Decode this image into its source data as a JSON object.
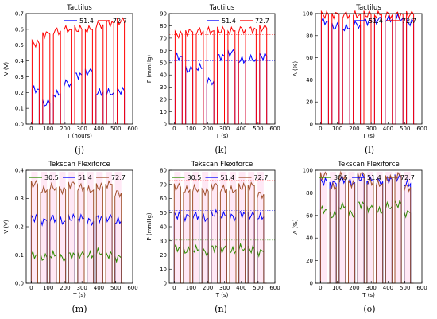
{
  "chart_data": [
    {
      "type": "line",
      "letter": "(j)",
      "title": "Tactilus",
      "xlabel": "T (hours)",
      "ylabel": "V (V)",
      "xlim": [
        -30,
        600
      ],
      "ylim": [
        0,
        0.7
      ],
      "xticks": [
        "0",
        "100",
        "200",
        "300",
        "400",
        "500",
        "600"
      ],
      "yticks": [
        "0.0",
        "0.1",
        "0.2",
        "0.3",
        "0.4",
        "0.5",
        "0.6",
        "0.7"
      ],
      "legend": "top-right",
      "grid": false,
      "series": [
        {
          "name": "51.4",
          "color": "#0000ff",
          "levels": [
            0.22,
            0.13,
            0.19,
            0.26,
            0.31,
            0.33,
            0.2,
            0.2,
            0.21
          ]
        },
        {
          "name": "72.7",
          "color": "#ff0000",
          "levels": [
            0.51,
            0.57,
            0.59,
            0.6,
            0.6,
            0.6,
            0.63,
            0.64,
            0.65
          ]
        }
      ]
    },
    {
      "type": "line",
      "letter": "(k)",
      "title": "Tactilus",
      "xlabel": "T (s)",
      "ylabel": "P (mmHg)",
      "xlim": [
        -30,
        600
      ],
      "ylim": [
        0,
        90
      ],
      "xticks": [
        "0",
        "100",
        "200",
        "300",
        "400",
        "500",
        "600"
      ],
      "yticks": [
        "0",
        "10",
        "20",
        "30",
        "40",
        "50",
        "60",
        "70",
        "80",
        "90"
      ],
      "legend": "top-right",
      "grid": false,
      "series": [
        {
          "name": "51.4",
          "color": "#0000ff",
          "levels": [
            55,
            44,
            46,
            35,
            55,
            58,
            52,
            53,
            55
          ]
        },
        {
          "name": "72.7",
          "color": "#ff0000",
          "levels": [
            73,
            75,
            76,
            76,
            76,
            76,
            77,
            77,
            78
          ]
        }
      ],
      "reference_lines": [
        51.4,
        72.7
      ]
    },
    {
      "type": "line",
      "letter": "(l)",
      "title": "Tactilus",
      "xlabel": "T (s)",
      "ylabel": "A (%)",
      "xlim": [
        -30,
        600
      ],
      "ylim": [
        0,
        100
      ],
      "xticks": [
        "0",
        "100",
        "200",
        "300",
        "400",
        "500",
        "600"
      ],
      "yticks": [
        "0",
        "20",
        "40",
        "60",
        "80",
        "100"
      ],
      "legend": "top-right",
      "grid": false,
      "series": [
        {
          "name": "51.4",
          "color": "#0000ff",
          "levels": [
            93,
            88,
            87,
            90,
            93,
            94,
            95,
            96,
            92
          ]
        },
        {
          "name": "72.7",
          "color": "#ff0000",
          "levels": [
            99,
            99,
            99,
            99,
            99,
            99,
            99,
            99,
            99
          ]
        }
      ]
    },
    {
      "type": "line",
      "letter": "(m)",
      "title": "Tekscan Flexiforce",
      "xlabel": "T (s)",
      "ylabel": "V (V)",
      "xlim": [
        -30,
        600
      ],
      "ylim": [
        0,
        0.4
      ],
      "xticks": [
        "0",
        "100",
        "200",
        "300",
        "400",
        "500",
        "600"
      ],
      "yticks": [
        "0.0",
        "0.1",
        "0.2",
        "0.3",
        "0.4"
      ],
      "legend": "top",
      "grid": false,
      "series": [
        {
          "name": "30.5",
          "color": "#2e8b00",
          "levels": [
            0.1,
            0.09,
            0.1,
            0.09,
            0.1,
            0.1,
            0.1,
            0.11,
            0.1,
            0.09
          ]
        },
        {
          "name": "51.4",
          "color": "#0000ff",
          "levels": [
            0.23,
            0.22,
            0.23,
            0.22,
            0.23,
            0.23,
            0.22,
            0.23,
            0.23,
            0.22
          ]
        },
        {
          "name": "72.7",
          "color": "#a0522d",
          "levels": [
            0.35,
            0.33,
            0.34,
            0.33,
            0.35,
            0.34,
            0.33,
            0.34,
            0.35,
            0.32
          ]
        }
      ]
    },
    {
      "type": "line",
      "letter": "(n)",
      "title": "Tekscan Flexiforce",
      "xlabel": "T (s)",
      "ylabel": "P (mmHg)",
      "xlim": [
        -30,
        600
      ],
      "ylim": [
        0,
        80
      ],
      "xticks": [
        "0",
        "100",
        "200",
        "300",
        "400",
        "500",
        "600"
      ],
      "yticks": [
        "0",
        "10",
        "20",
        "30",
        "40",
        "50",
        "60",
        "70",
        "80"
      ],
      "legend": "top",
      "grid": false,
      "series": [
        {
          "name": "30.5",
          "color": "#2e8b00",
          "levels": [
            25,
            23,
            24,
            22,
            25,
            24,
            23,
            25,
            24,
            22
          ]
        },
        {
          "name": "51.4",
          "color": "#0000ff",
          "levels": [
            48,
            47,
            48,
            46,
            49,
            48,
            47,
            49,
            48,
            47
          ]
        },
        {
          "name": "72.7",
          "color": "#a0522d",
          "levels": [
            68,
            66,
            67,
            65,
            69,
            67,
            66,
            68,
            69,
            63
          ]
        }
      ],
      "reference_lines": [
        30.5,
        51.4,
        72.7
      ]
    },
    {
      "type": "line",
      "letter": "(o)",
      "title": "Tekscan Flexiforce",
      "xlabel": "T (s)",
      "ylabel": "A (%)",
      "xlim": [
        -30,
        600
      ],
      "ylim": [
        0,
        100
      ],
      "xticks": [
        "0",
        "100",
        "200",
        "300",
        "400",
        "500",
        "600"
      ],
      "yticks": [
        "0",
        "20",
        "40",
        "60",
        "80",
        "100"
      ],
      "legend": "top",
      "grid": false,
      "series": [
        {
          "name": "30.5",
          "color": "#2e8b00",
          "levels": [
            65,
            60,
            68,
            62,
            70,
            66,
            64,
            68,
            70,
            62
          ]
        },
        {
          "name": "51.4",
          "color": "#0000ff",
          "levels": [
            90,
            88,
            92,
            89,
            93,
            91,
            90,
            92,
            93,
            88
          ]
        },
        {
          "name": "72.7",
          "color": "#a0522d",
          "levels": [
            95,
            85,
            95,
            88,
            96,
            90,
            88,
            92,
            95,
            85
          ]
        }
      ]
    }
  ]
}
